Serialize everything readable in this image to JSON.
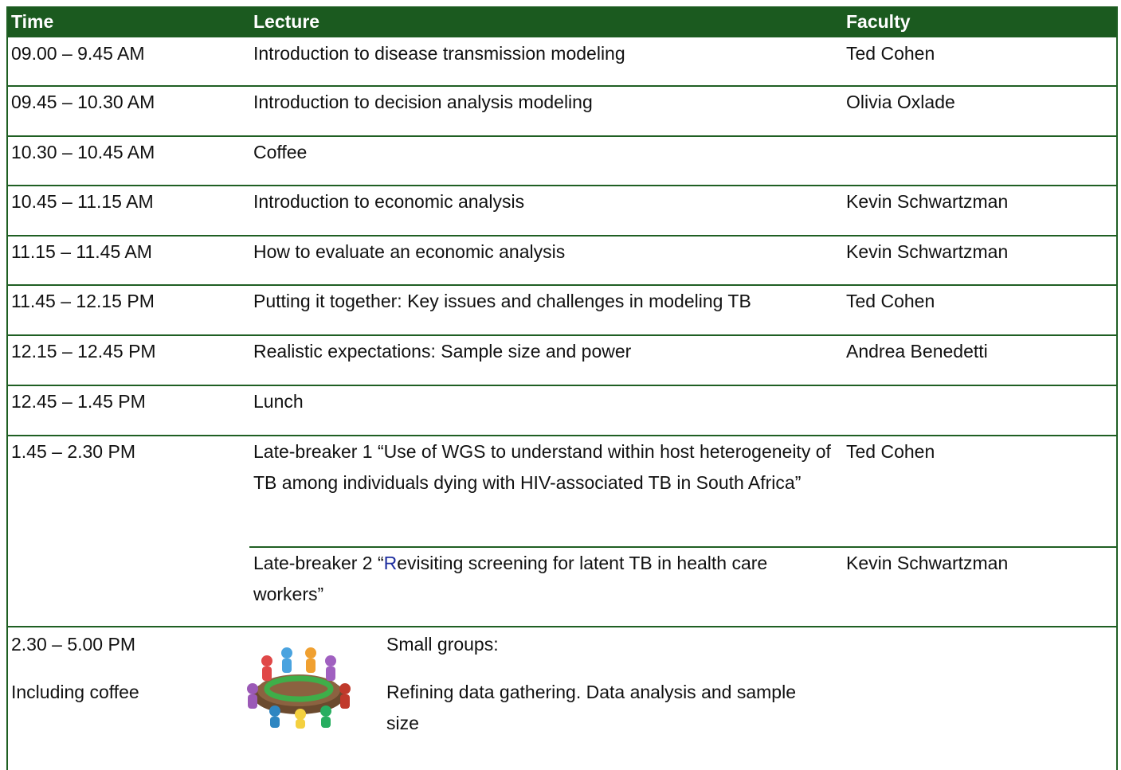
{
  "header": {
    "time": "Time",
    "lecture": "Lecture",
    "faculty": "Faculty"
  },
  "rows": [
    {
      "time": "09.00 – 9.45 AM",
      "lecture": "Introduction to disease transmission modeling",
      "faculty": "Ted Cohen"
    },
    {
      "time": "09.45 – 10.30 AM",
      "lecture": "Introduction to decision analysis modeling",
      "faculty": "Olivia Oxlade"
    },
    {
      "time": "10.30 – 10.45 AM",
      "lecture": "Coffee"
    },
    {
      "time": "10.45 – 11.15 AM",
      "lecture": "Introduction to economic analysis",
      "faculty": "Kevin Schwartzman"
    },
    {
      "time": "11.15 – 11.45 AM",
      "lecture": "How to evaluate an economic analysis",
      "faculty": "Kevin Schwartzman"
    },
    {
      "time": "11.45 – 12.15 PM",
      "lecture": "Putting it together: Key issues and challenges in modeling TB",
      "faculty": "Ted Cohen"
    },
    {
      "time": "12.15 – 12.45 PM",
      "lecture": "Realistic expectations: Sample size and power",
      "faculty": "Andrea Benedetti"
    },
    {
      "time": "12.45 – 1.45 PM",
      "lecture": "Lunch"
    }
  ],
  "late_breakers": {
    "time": "1.45 – 2.30 PM",
    "sessions": [
      {
        "lecture": "Late-breaker 1 “Use of WGS to understand within host heterogeneity of TB among individuals dying with HIV-associated TB in South Africa”",
        "faculty": "Ted Cohen"
      },
      {
        "lecture_parts": [
          "Late-breaker 2 “",
          "R",
          "evisiting screening for latent TB in health care workers”"
        ],
        "faculty": "Kevin Schwartzman"
      }
    ]
  },
  "small_groups": {
    "time": "2.30 – 5.00 PM",
    "note": "Including coffee",
    "title": "Small groups:",
    "description": "Refining data gathering. Data analysis and sample size"
  }
}
